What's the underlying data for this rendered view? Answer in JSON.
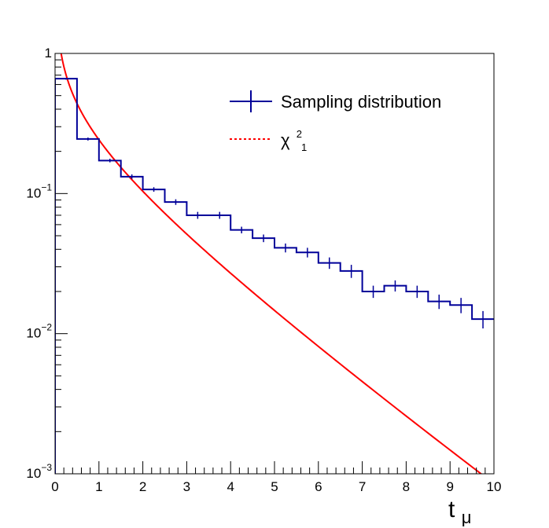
{
  "chart_data": {
    "type": "line",
    "title": "",
    "xlabel": {
      "main": "t",
      "sub": "μ"
    },
    "ylabel": "",
    "xlim": [
      0,
      10
    ],
    "ylim": [
      0.001,
      1
    ],
    "yscale": "log",
    "x_tick_labels": [
      "0",
      "1",
      "2",
      "3",
      "4",
      "5",
      "6",
      "7",
      "8",
      "9",
      "10"
    ],
    "y_tick_labels": [
      {
        "value": 1,
        "base": "1",
        "exp": ""
      },
      {
        "value": 0.1,
        "base": "10",
        "exp": "−1"
      },
      {
        "value": 0.01,
        "base": "10",
        "exp": "−2"
      },
      {
        "value": 0.001,
        "base": "10",
        "exp": "−3"
      }
    ],
    "grid": false,
    "legend_position": "top-right",
    "series": [
      {
        "name": "Sampling distribution",
        "kind": "histogram-step",
        "color": "#000099",
        "bin_width": 0.5,
        "bin_edges_start": 0,
        "values": [
          0.66,
          0.245,
          0.172,
          0.132,
          0.107,
          0.087,
          0.07,
          0.07,
          0.055,
          0.048,
          0.041,
          0.038,
          0.032,
          0.028,
          0.02,
          0.022,
          0.02,
          0.017,
          0.016,
          0.0127
        ],
        "errors": [
          0.01,
          0.006,
          0.005,
          0.005,
          0.004,
          0.004,
          0.004,
          0.004,
          0.003,
          0.003,
          0.003,
          0.003,
          0.003,
          0.003,
          0.002,
          0.002,
          0.002,
          0.002,
          0.002,
          0.0018
        ]
      },
      {
        "name": "χ",
        "name_sup": "2",
        "name_sub": "1",
        "kind": "function",
        "function": "chi2_pdf_dof1",
        "color": "#ff0000",
        "x_range": [
          0.02,
          10
        ]
      }
    ]
  }
}
